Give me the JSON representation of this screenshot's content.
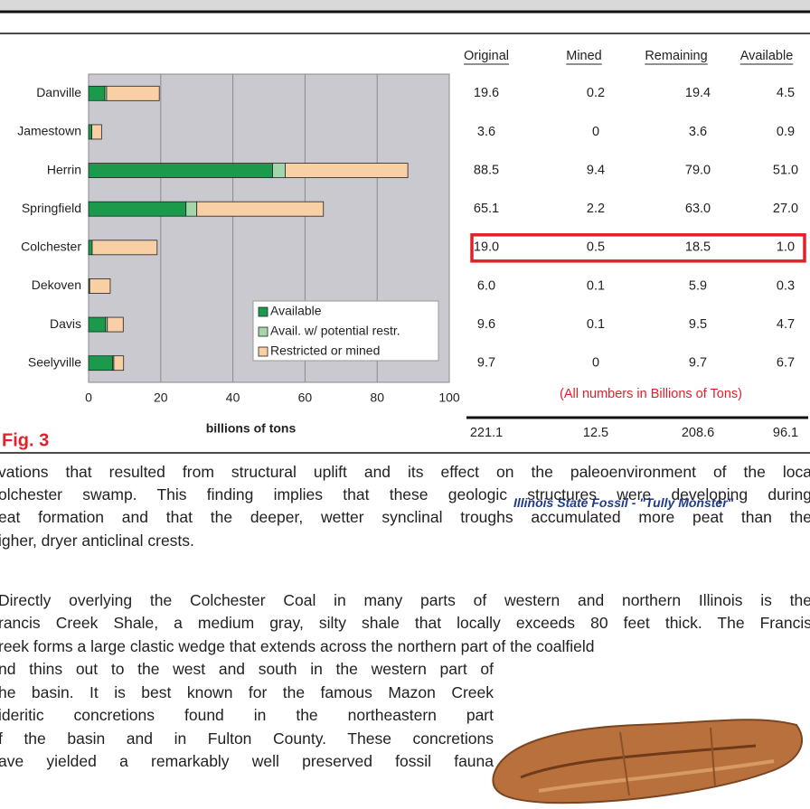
{
  "chart_data": {
    "type": "bar",
    "orientation": "horizontal",
    "stacked": true,
    "categories": [
      "Danville",
      "Jamestown",
      "Herrin",
      "Springfield",
      "Colchester",
      "Dekoven",
      "Davis",
      "Seelyville"
    ],
    "series": [
      {
        "name": "Available",
        "color": "#1a9a4a",
        "values": [
          4.5,
          0.9,
          51.0,
          27.0,
          1.0,
          0.3,
          4.7,
          6.7
        ]
      },
      {
        "name": "Avail. w/ potential restr.",
        "color": "#a3d6ab",
        "values": [
          0.5,
          0,
          3.5,
          3.0,
          0,
          0,
          0.5,
          0.3
        ]
      },
      {
        "name": "Restricted or mined",
        "color": "#f9cfa6",
        "values": [
          14.6,
          2.7,
          34.0,
          35.1,
          18.0,
          5.7,
          4.4,
          2.7
        ]
      }
    ],
    "xlabel": "billions of tons",
    "xlim": [
      0,
      100
    ],
    "xticks": [
      0,
      20,
      40,
      60,
      80,
      100
    ],
    "grid": true,
    "legend": "lower right"
  },
  "table": {
    "headers": [
      "Original",
      "Mined",
      "Remaining",
      "Available"
    ],
    "rows": [
      [
        "19.6",
        "0.2",
        "19.4",
        "4.5"
      ],
      [
        "3.6",
        "0",
        "3.6",
        "0.9"
      ],
      [
        "88.5",
        "9.4",
        "79.0",
        "51.0"
      ],
      [
        "65.1",
        "2.2",
        "63.0",
        "27.0"
      ],
      [
        "19.0",
        "0.5",
        "18.5",
        "1.0"
      ],
      [
        "6.0",
        "0.1",
        "5.9",
        "0.3"
      ],
      [
        "9.6",
        "0.1",
        "9.5",
        "4.7"
      ],
      [
        "9.7",
        "0",
        "9.7",
        "6.7"
      ]
    ],
    "note": "(All numbers in Billions of Tons)",
    "totals": [
      "221.1",
      "12.5",
      "208.6",
      "96.1"
    ]
  },
  "figure_label": "Fig. 3",
  "body": {
    "paragraphs": [
      [
        "vations that resulted from structural uplift and its effect on the paleoenvironment of the loca",
        "olchester swamp. This finding implies that these geologic structures were developing during",
        "eat formation and that the deeper, wetter synclinal troughs accumulated more peat than the",
        "igher, dryer anticlinal crests."
      ],
      [
        "Directly overlying the Colchester Coal in many parts of western and northern Illinois is the",
        "rancis Creek Shale, a medium gray, silty shale that locally exceeds 80 feet thick. The Francis",
        "reek forms a large clastic wedge that extends across the northern part of the coalfield",
        "nd thins out to the west and south in the western part of",
        "he basin. It is best known for the famous Mazon Creek",
        "ideritic concretions found in the northeastern part",
        "f the basin and in Fulton County. These concretions",
        "ave yielded a remarkably well preserved fossil fauna"
      ]
    ]
  },
  "fossil": {
    "caption": "Illinois State Fossil - \"Tully Monster\""
  }
}
